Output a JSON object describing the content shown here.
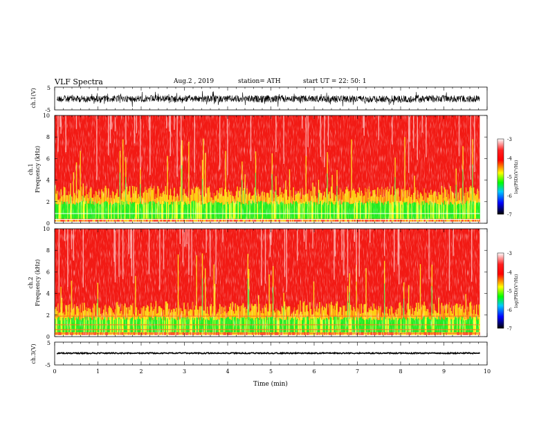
{
  "header": {
    "title": "VLF  Spectra",
    "date": "Aug.2  , 2019",
    "station": "station= ATH",
    "start": "start  UT  =    22: 50: 1"
  },
  "chart_data": [
    {
      "type": "line",
      "name": "ch1-waveform",
      "ylabel": "ch.1(V)",
      "ylim": [
        -5,
        5
      ],
      "yticks": [
        "5",
        "-5"
      ],
      "xlim": [
        0,
        10
      ]
    },
    {
      "type": "heatmap",
      "name": "ch1-spectrogram",
      "ylabel": "ch.1\nFrequency (kHz)",
      "ylabel_lines": [
        "ch.1",
        "Frequency (kHz)"
      ],
      "ylim": [
        0,
        10
      ],
      "yticks": [
        "0",
        "2",
        "4",
        "6",
        "8",
        "10"
      ],
      "xlim": [
        0,
        10
      ],
      "data_end_min": 9.83,
      "colorbar": {
        "label": "log(PSD)(V²/Hz)",
        "range": [
          -7,
          -3
        ],
        "ticks": [
          "-3",
          "-4",
          "-5",
          "-6",
          "-7"
        ]
      }
    },
    {
      "type": "heatmap",
      "name": "ch2-spectrogram",
      "ylabel": "ch.2\nFrequency (kHz)",
      "ylabel_lines": [
        "ch.2",
        "Frequency (kHz)"
      ],
      "ylim": [
        0,
        10
      ],
      "yticks": [
        "0",
        "2",
        "4",
        "6",
        "8",
        "10"
      ],
      "xlim": [
        0,
        10
      ],
      "data_end_min": 9.83,
      "colorbar": {
        "label": "log(PSD)(V²/Hz)",
        "range": [
          -7,
          -3
        ],
        "ticks": [
          "-3",
          "-4",
          "-5",
          "-6",
          "-7"
        ]
      }
    },
    {
      "type": "line",
      "name": "ch3-waveform",
      "ylabel": "ch.3(V)",
      "ylim": [
        -5,
        5
      ],
      "yticks": [
        "5",
        "-5"
      ],
      "xlim": [
        0,
        10
      ],
      "xlabel": "Time  (min)",
      "xticks": [
        "0",
        "1",
        "2",
        "3",
        "4",
        "5",
        "6",
        "7",
        "8",
        "9",
        "10"
      ]
    }
  ],
  "colors": {
    "colormap": [
      "#000000",
      "#0000ff",
      "#00c8ff",
      "#00ff00",
      "#ffff00",
      "#ff0000",
      "#ffffff"
    ]
  }
}
